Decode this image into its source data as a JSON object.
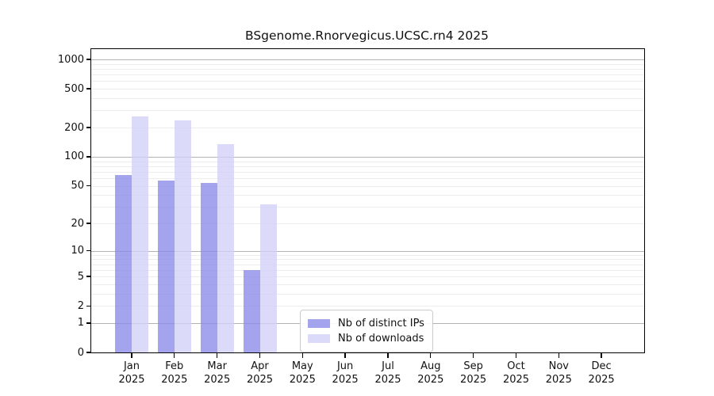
{
  "chart_data": {
    "type": "bar",
    "title": "BSgenome.Rnorvegicus.UCSC.rn4 2025",
    "x_categories": [
      "Jan 2025",
      "Feb 2025",
      "Mar 2025",
      "Apr 2025",
      "May 2025",
      "Jun 2025",
      "Jul 2025",
      "Aug 2025",
      "Sep 2025",
      "Oct 2025",
      "Nov 2025",
      "Dec 2025"
    ],
    "series": [
      {
        "name": "Nb of distinct IPs",
        "color": "#a4a4ee",
        "values": [
          65,
          57,
          53,
          6,
          null,
          null,
          null,
          null,
          null,
          null,
          null,
          null
        ]
      },
      {
        "name": "Nb of downloads",
        "color": "#dbdbf9",
        "values": [
          260,
          235,
          135,
          32,
          null,
          null,
          null,
          null,
          null,
          null,
          null,
          null
        ]
      }
    ],
    "y_scale": "log1p",
    "y_ticks": [
      0,
      1,
      2,
      5,
      10,
      20,
      50,
      100,
      200,
      500,
      1000
    ],
    "y_minor_gridlines": [
      2,
      3,
      4,
      5,
      6,
      7,
      8,
      9,
      20,
      30,
      40,
      50,
      60,
      70,
      80,
      90,
      200,
      300,
      400,
      500,
      600,
      700,
      800,
      900
    ],
    "y_major_gridlines": [
      1,
      10,
      100,
      1000
    ],
    "y_max": 1290,
    "grid": true,
    "legend_position": "inside-bottom-center",
    "colors": {
      "axis": "#000000",
      "major_grid": "#b3b3b3",
      "minor_grid": "#ededed",
      "legend_border": "#cccccc"
    }
  }
}
